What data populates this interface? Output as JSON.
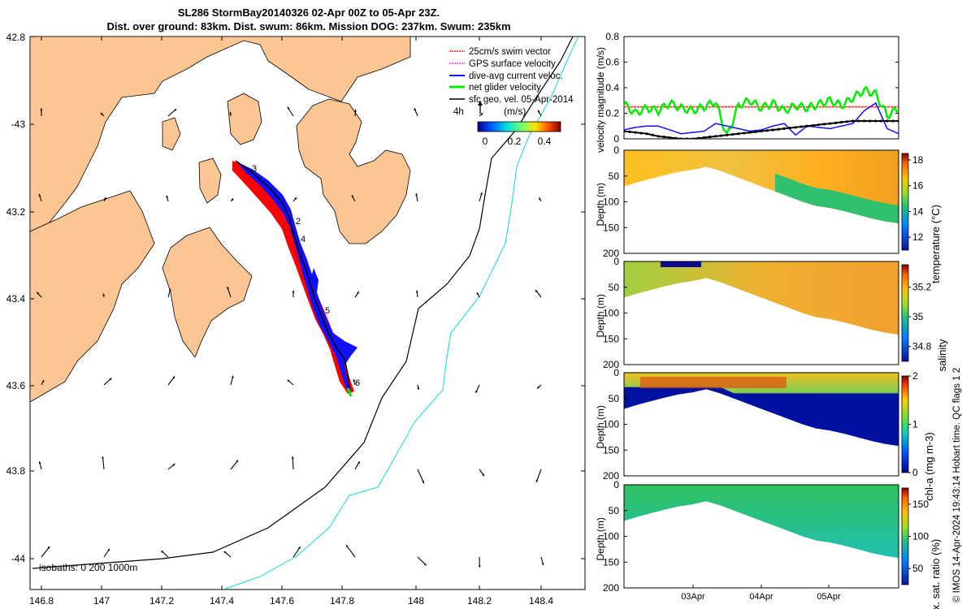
{
  "title": {
    "line1": "SL286 StormBay20140326 02-Apr 00Z to 05-Apr 23Z.",
    "line2": "Dist. over ground: 83km. Dist. swum: 86km. Mission DOG: 237km. Swum: 235km"
  },
  "map": {
    "lon_ticks": [
      "146.8",
      "147",
      "147.2",
      "147.4",
      "147.6",
      "147.8",
      "148",
      "148.2",
      "148.4"
    ],
    "lat_ticks": [
      "42.8",
      "-43",
      "43.2",
      "43.4",
      "43.6",
      "43.8",
      "-44"
    ],
    "legend": [
      {
        "label": "25cm/s swim vector",
        "color": "#ff2020"
      },
      {
        "label": "GPS surface velocity",
        "color": "#ff33ff"
      },
      {
        "label": "dive-avg current veloc.",
        "color": "#1010ff"
      },
      {
        "label": "net glider velocity",
        "color": "#00ee00"
      },
      {
        "label": "sfc geo. vel. 05-Apr-2014",
        "color": "#000000"
      }
    ],
    "colorbar_title": "(m/s)",
    "colorbar_side_label": "4h",
    "colorbar_ticks": [
      "0",
      "0.2",
      "0.4"
    ],
    "isobath_label": "isobaths: 0   200  1000m",
    "waypoints": [
      "3",
      "2",
      "4",
      "5",
      "6"
    ],
    "land_color": "#fbc694",
    "isobath_200_color": "#000000",
    "isobath_1000_color": "#33dddd"
  },
  "chart_data": [
    {
      "type": "line",
      "title": "",
      "ylabel": "velocity magnitude (m/s)",
      "ylim": [
        0,
        0.8
      ],
      "yticks": [
        "0",
        "0.2",
        "0.4",
        "0.6",
        "0.8"
      ],
      "series": [
        {
          "name": "25cm/s swim vector",
          "color": "#ff2020",
          "values": [
            0.25,
            0.25,
            0.25,
            0.25,
            0.25,
            0.25,
            0.25,
            0.25,
            0.25,
            0.25,
            0.25,
            0.25,
            0.25,
            0.25,
            0.25,
            0.25,
            0.25,
            0.25,
            0.25,
            0.25,
            0.25,
            0.25,
            0.25,
            0.25,
            0.25
          ]
        },
        {
          "name": "net glider velocity",
          "color": "#00ee00",
          "values": [
            0.27,
            0.2,
            0.24,
            0.22,
            0.28,
            0.24,
            0.22,
            0.25,
            0.29,
            0.02,
            0.26,
            0.3,
            0.24,
            0.28,
            0.22,
            0.26,
            0.24,
            0.27,
            0.3,
            0.26,
            0.32,
            0.38,
            0.35,
            0.18,
            0.24
          ]
        },
        {
          "name": "dive-avg current veloc.",
          "color": "#1010ff",
          "values": [
            0.07,
            0.09,
            0.1,
            0.1,
            0.07,
            0.04,
            0.05,
            0.06,
            0.12,
            0.1,
            0.08,
            0.06,
            0.07,
            0.1,
            0.12,
            0.03,
            0.1,
            0.09,
            0.08,
            0.1,
            0.12,
            0.22,
            0.28,
            0.08,
            0.04
          ]
        },
        {
          "name": "sfc geo. vel.",
          "color": "#000000",
          "values": [
            0.06,
            0.05,
            0.04,
            0.02,
            0.01,
            0.0,
            0.0,
            0.01,
            0.02,
            0.03,
            0.04,
            0.05,
            0.06,
            0.07,
            0.08,
            0.09,
            0.1,
            0.11,
            0.12,
            0.13,
            0.14,
            0.14,
            0.14,
            0.14,
            0.14
          ]
        }
      ]
    },
    {
      "type": "heatmap",
      "ylabel": "Depth (m)",
      "yticks": [
        "0",
        "50",
        "100",
        "150",
        "200"
      ],
      "colorbar_label": "temperature (°C)",
      "colorbar_ticks": [
        "12",
        "14",
        "16",
        "18"
      ],
      "bottom_depth": [
        70,
        62,
        55,
        48,
        42,
        38,
        32,
        40,
        50,
        60,
        70,
        80,
        90,
        100,
        108,
        112,
        118,
        125,
        132,
        138,
        142
      ]
    },
    {
      "type": "heatmap",
      "ylabel": "Depth (m)",
      "yticks": [
        "0",
        "50",
        "100",
        "150",
        "200"
      ],
      "colorbar_label": "salinity",
      "colorbar_ticks": [
        "34.8",
        "35",
        "35.2"
      ],
      "bottom_depth": [
        70,
        62,
        55,
        48,
        42,
        38,
        32,
        40,
        50,
        60,
        70,
        80,
        90,
        100,
        108,
        112,
        118,
        125,
        132,
        138,
        142
      ]
    },
    {
      "type": "heatmap",
      "ylabel": "Depth (m)",
      "yticks": [
        "0",
        "50",
        "100",
        "150",
        "200"
      ],
      "colorbar_label": "chl-a (mg m-3)",
      "colorbar_ticks": [
        "0",
        "1",
        "2"
      ],
      "bottom_depth": [
        70,
        62,
        55,
        48,
        42,
        38,
        32,
        40,
        50,
        60,
        70,
        80,
        90,
        100,
        108,
        112,
        118,
        125,
        132,
        138,
        142
      ]
    },
    {
      "type": "heatmap",
      "ylabel": "Depth (m)",
      "yticks": [
        "0",
        "50",
        "100",
        "150",
        "200"
      ],
      "xticks": [
        "03Apr",
        "04Apr",
        "05Apr"
      ],
      "colorbar_label": "Ox. sat. ratio (%)",
      "colorbar_ticks": [
        "50",
        "100",
        "150"
      ],
      "bottom_depth": [
        70,
        62,
        55,
        48,
        42,
        38,
        32,
        40,
        50,
        60,
        70,
        80,
        90,
        100,
        108,
        112,
        118,
        125,
        132,
        138,
        142
      ]
    }
  ],
  "credit": "© IMOS 14-Apr-2024 19:43:14 Hobart time. QC flags 1 2"
}
